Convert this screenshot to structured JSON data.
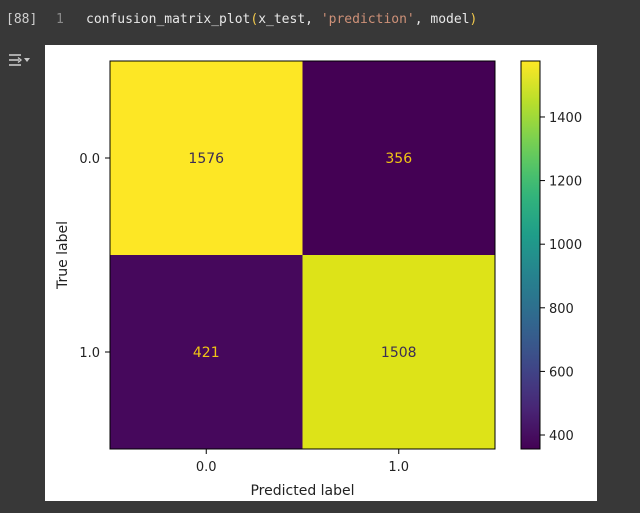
{
  "cell": {
    "execution_count": "[88]",
    "line_number": "1",
    "code": {
      "func": "confusion_matrix_plot",
      "open_paren": "(",
      "arg1": "x_test, ",
      "arg2": "'prediction'",
      "arg3": ", model",
      "close_paren": ")"
    }
  },
  "output": {
    "toggle_icon": "output-collapse-icon"
  },
  "chart_data": {
    "type": "heatmap",
    "x_categories": [
      "0.0",
      "1.0"
    ],
    "y_categories": [
      "0.0",
      "1.0"
    ],
    "matrix": [
      [
        1576,
        356
      ],
      [
        421,
        1508
      ]
    ],
    "xlabel": "Predicted label",
    "ylabel": "True label",
    "colormap": "viridis",
    "colorbar": {
      "min": 356,
      "max": 1576,
      "ticks": [
        400,
        600,
        800,
        1000,
        1200,
        1400
      ]
    },
    "colors": {
      "1576": "#fde725",
      "356": "#440154",
      "421": "#46085c",
      "1508": "#dde318"
    }
  }
}
